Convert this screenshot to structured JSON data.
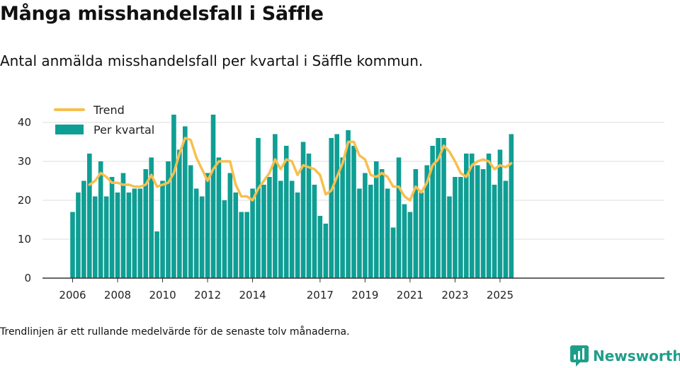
{
  "title": "Många misshandelsfall i Säffle",
  "subtitle": "Antal anmälda misshandelsfall per kvartal i Säffle kommun.",
  "footnote": "Trendlinjen är ett rullande medelvärde för de senaste tolv månaderna.",
  "brand": {
    "name": "Newsworthy",
    "icon": "newsworthy-logo-icon"
  },
  "colors": {
    "bars": "#0f9e94",
    "trend": "#f6c04f",
    "grid": "#dddddd",
    "axis": "#333333",
    "brand": "#1e9e8a"
  },
  "chart_data": {
    "type": "bar",
    "ylim": [
      0,
      45
    ],
    "yticks": [
      0,
      10,
      20,
      30,
      40
    ],
    "grid": true,
    "legend_position": "top-left",
    "xtick_labels": [
      {
        "label": "2006",
        "index": 0
      },
      {
        "label": "2008",
        "index": 8
      },
      {
        "label": "2010",
        "index": 16
      },
      {
        "label": "2012",
        "index": 24
      },
      {
        "label": "2014",
        "index": 32
      },
      {
        "label": "2017",
        "index": 44
      },
      {
        "label": "2019",
        "index": 52
      },
      {
        "label": "2021",
        "index": 60
      },
      {
        "label": "2023",
        "index": 68
      },
      {
        "label": "2025",
        "index": 76
      }
    ],
    "series": [
      {
        "name": "Per kvartal",
        "kind": "bar",
        "values": [
          17,
          22,
          25,
          32,
          21,
          30,
          21,
          26,
          22,
          27,
          22,
          23,
          23,
          28,
          31,
          12,
          25,
          30,
          42,
          33,
          39,
          29,
          23,
          21,
          27,
          42,
          31,
          20,
          27,
          22,
          17,
          17,
          23,
          36,
          24,
          26,
          37,
          25,
          34,
          25,
          22,
          35,
          32,
          24,
          16,
          14,
          36,
          37,
          31,
          38,
          34,
          23,
          27,
          24,
          30,
          28,
          23,
          13,
          31,
          19,
          17,
          28,
          22,
          29,
          34,
          36,
          36,
          21,
          26,
          26,
          32,
          32,
          29,
          28,
          32,
          24,
          33,
          25,
          37
        ]
      },
      {
        "name": "Trend",
        "kind": "line",
        "start_index": 3,
        "values": [
          24,
          25,
          27,
          26,
          24.5,
          24.5,
          24,
          24,
          23.5,
          23.5,
          24,
          26.5,
          23.5,
          24,
          24.5,
          27,
          32,
          36,
          35.5,
          31,
          28,
          25,
          28,
          30,
          30,
          30,
          24,
          21,
          21,
          20,
          23,
          25,
          27,
          30.5,
          28,
          30.5,
          30,
          26.5,
          29,
          28.5,
          28,
          26.5,
          21.5,
          22.5,
          26,
          29.5,
          35,
          35,
          31.5,
          30.5,
          26.5,
          26,
          27,
          26,
          23.5,
          23.5,
          21,
          20,
          23.5,
          22,
          24.5,
          29,
          30.5,
          34,
          32.5,
          30,
          27,
          26,
          29,
          30,
          30.5,
          30,
          28,
          29,
          28.5,
          29.5
        ]
      }
    ]
  }
}
